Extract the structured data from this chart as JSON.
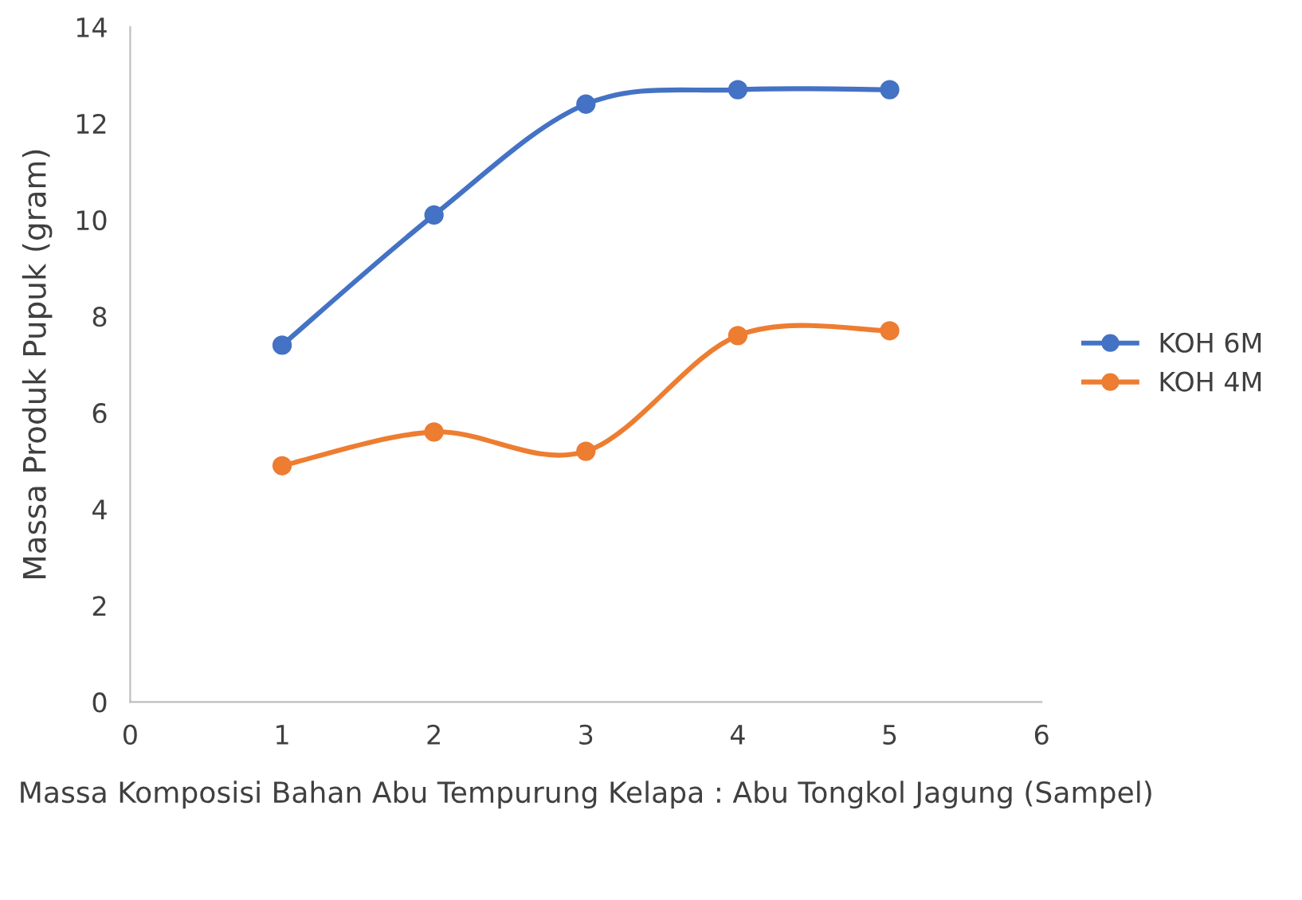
{
  "chart_data": {
    "type": "line",
    "xlabel": "Massa Komposisi Bahan Abu Tempurung Kelapa : Abu Tongkol Jagung (Sampel)",
    "ylabel": "Massa Produk Pupuk (gram)",
    "x": [
      1,
      2,
      3,
      4,
      5
    ],
    "series": [
      {
        "name": "KOH 6M",
        "color": "#4472c4",
        "values": [
          7.4,
          10.1,
          12.4,
          12.7,
          12.7
        ]
      },
      {
        "name": "KOH 4M",
        "color": "#ed7d31",
        "values": [
          4.9,
          5.6,
          5.2,
          7.6,
          7.7
        ]
      }
    ],
    "xlim": [
      0,
      6
    ],
    "xticks": [
      0,
      1,
      2,
      3,
      4,
      5,
      6
    ],
    "ylim": [
      0,
      14
    ],
    "yticks": [
      0,
      2,
      4,
      6,
      8,
      10,
      12,
      14
    ],
    "grid": false,
    "legend": "right",
    "marker": "circle",
    "line_style": "solid"
  }
}
